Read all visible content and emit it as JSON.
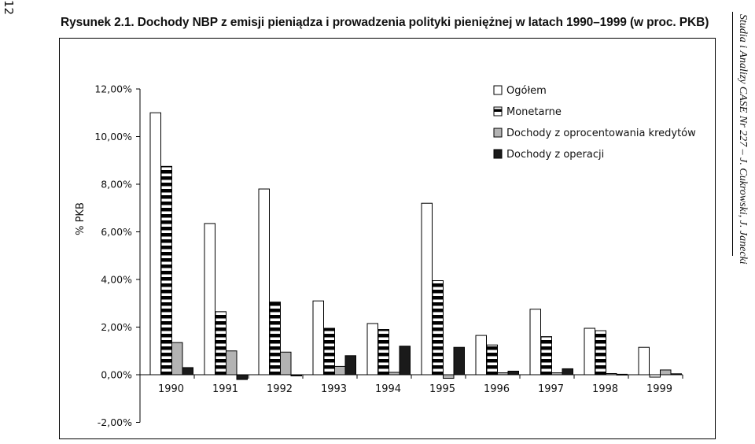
{
  "page": {
    "page_number": "12",
    "title": "Rysunek 2.1. Dochody NBP z emisji pieniądza i prowadzenia polityki pieniężnej w latach 1990–1999 (w  proc. PKB)",
    "side_label": "Studia i Analizy CASE Nr 227 – J. Cukrowski, J. Janecki"
  },
  "chart_data": {
    "type": "bar",
    "ylabel": "% PKB",
    "xlabel": "",
    "ylim": [
      -2,
      12
    ],
    "yticks": [
      -2,
      0,
      2,
      4,
      6,
      8,
      10,
      12
    ],
    "ytick_labels": [
      "-2,00%",
      "0,00%",
      "2,00%",
      "4,00%",
      "6,00%",
      "8,00%",
      "10,00%",
      "12,00%"
    ],
    "legend_position": "top-right",
    "categories": [
      "1990",
      "1991",
      "1992",
      "1993",
      "1994",
      "1995",
      "1996",
      "1997",
      "1998",
      "1999"
    ],
    "series": [
      {
        "name": "Ogółem",
        "fill": "#ffffff",
        "values": [
          11.0,
          6.35,
          7.8,
          3.1,
          2.15,
          7.2,
          1.65,
          2.75,
          1.95,
          1.15
        ]
      },
      {
        "name": "Monetarne",
        "fill": "striped",
        "values": [
          8.75,
          2.65,
          3.05,
          1.95,
          1.9,
          3.95,
          1.25,
          1.6,
          1.85,
          -0.1
        ]
      },
      {
        "name": "Dochody z oprocentowania kredytów",
        "fill": "#b3b3b3",
        "values": [
          1.35,
          1.0,
          0.95,
          0.35,
          0.1,
          -0.15,
          0.08,
          0.08,
          0.05,
          0.2
        ]
      },
      {
        "name": "Dochody z operacji",
        "fill": "#1a1a1a",
        "values": [
          0.3,
          -0.2,
          -0.05,
          0.8,
          1.2,
          1.15,
          0.15,
          0.25,
          0.02,
          0.04
        ]
      }
    ]
  }
}
